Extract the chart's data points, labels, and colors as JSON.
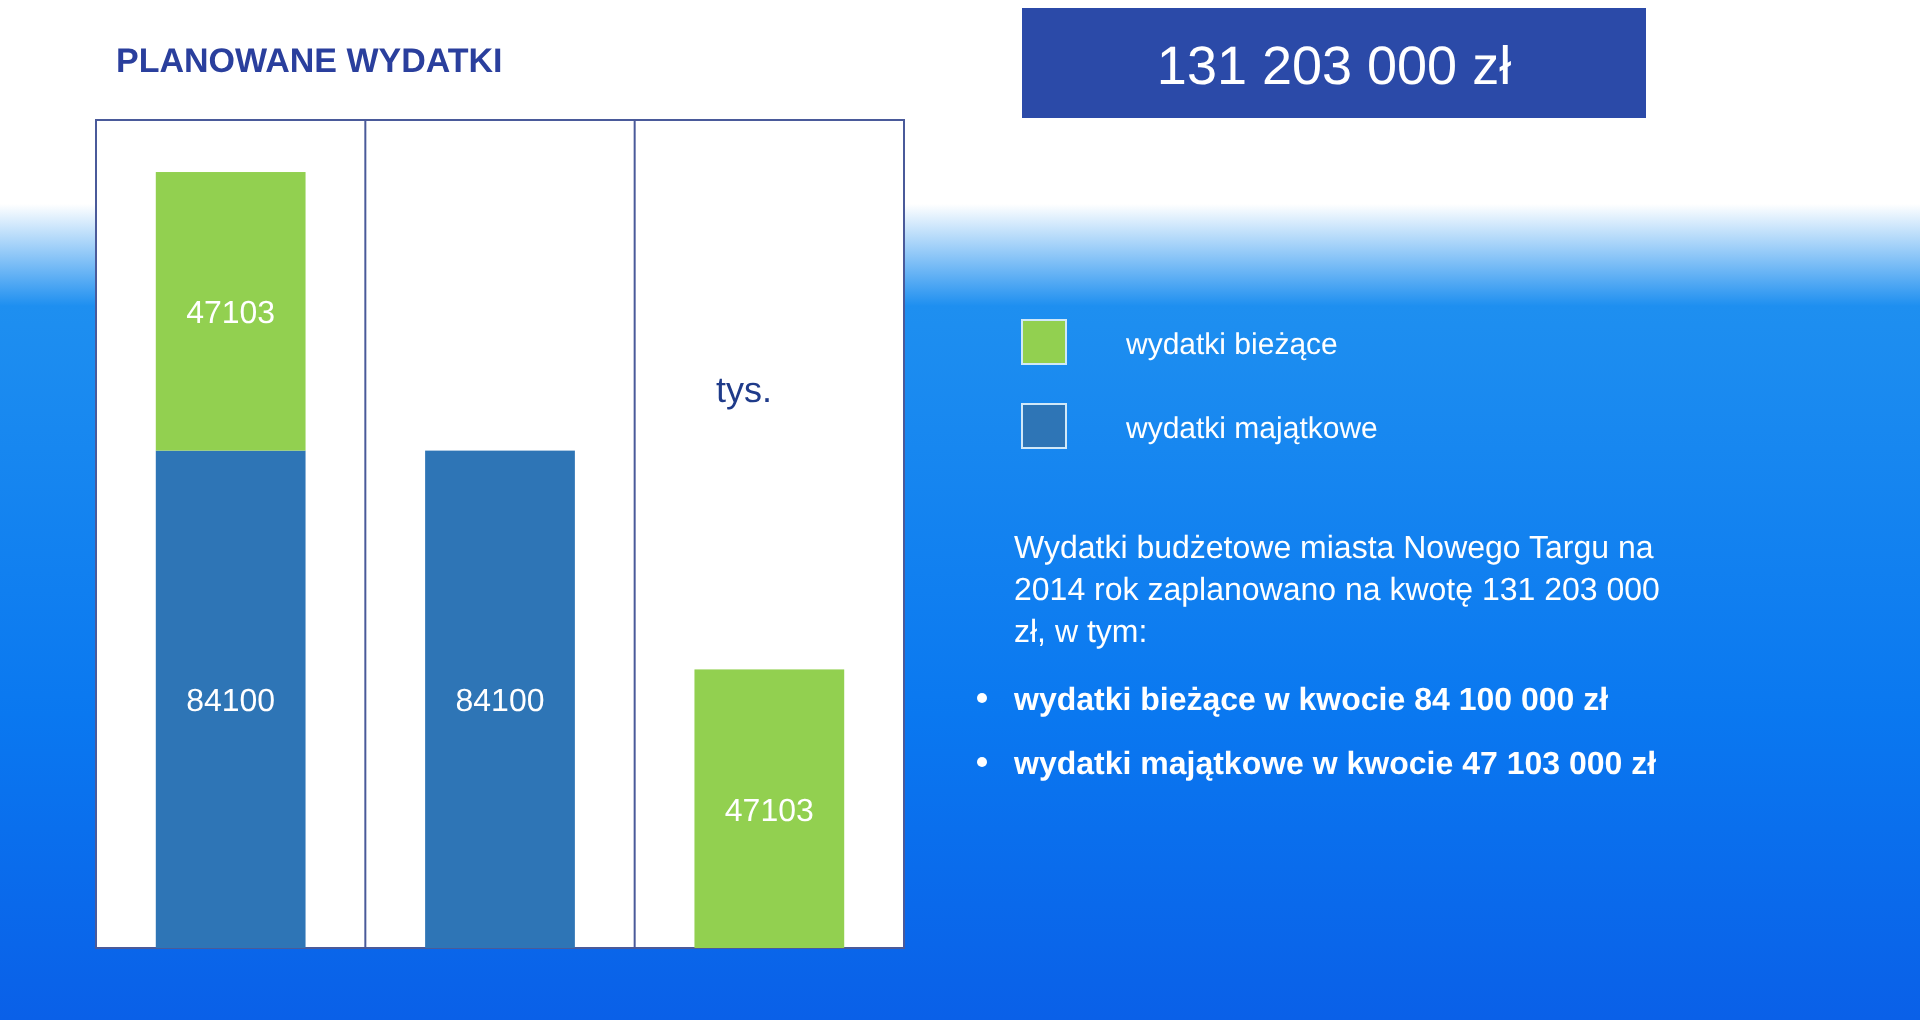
{
  "chart_data": {
    "type": "bar",
    "title": "PLANOWANE WYDATKI",
    "subtitle": "131 203 000 zł",
    "categories": [
      null,
      null,
      null
    ],
    "series": [
      {
        "name": "wydatki majątkowe",
        "color": "#2e75b6",
        "values": [
          84100,
          84100,
          null
        ]
      },
      {
        "name": "wydatki bieżące",
        "color": "#92d050",
        "values": [
          47103,
          null,
          47103
        ]
      }
    ],
    "stacked": true,
    "data_labels": true,
    "ylim": [
      0,
      140000
    ],
    "grid": "x",
    "legend": "right",
    "annotations": [
      "tys.",
      "Wydatki budżetowe miasta Nowego Targu na 2014 rok zaplanowano na kwotę 131 203 000 zł, w tym:",
      "wydatki bieżące w kwocie 84 100 000 zł",
      "wydatki majątkowe w kwocie 47 103 000 zł"
    ]
  }
}
